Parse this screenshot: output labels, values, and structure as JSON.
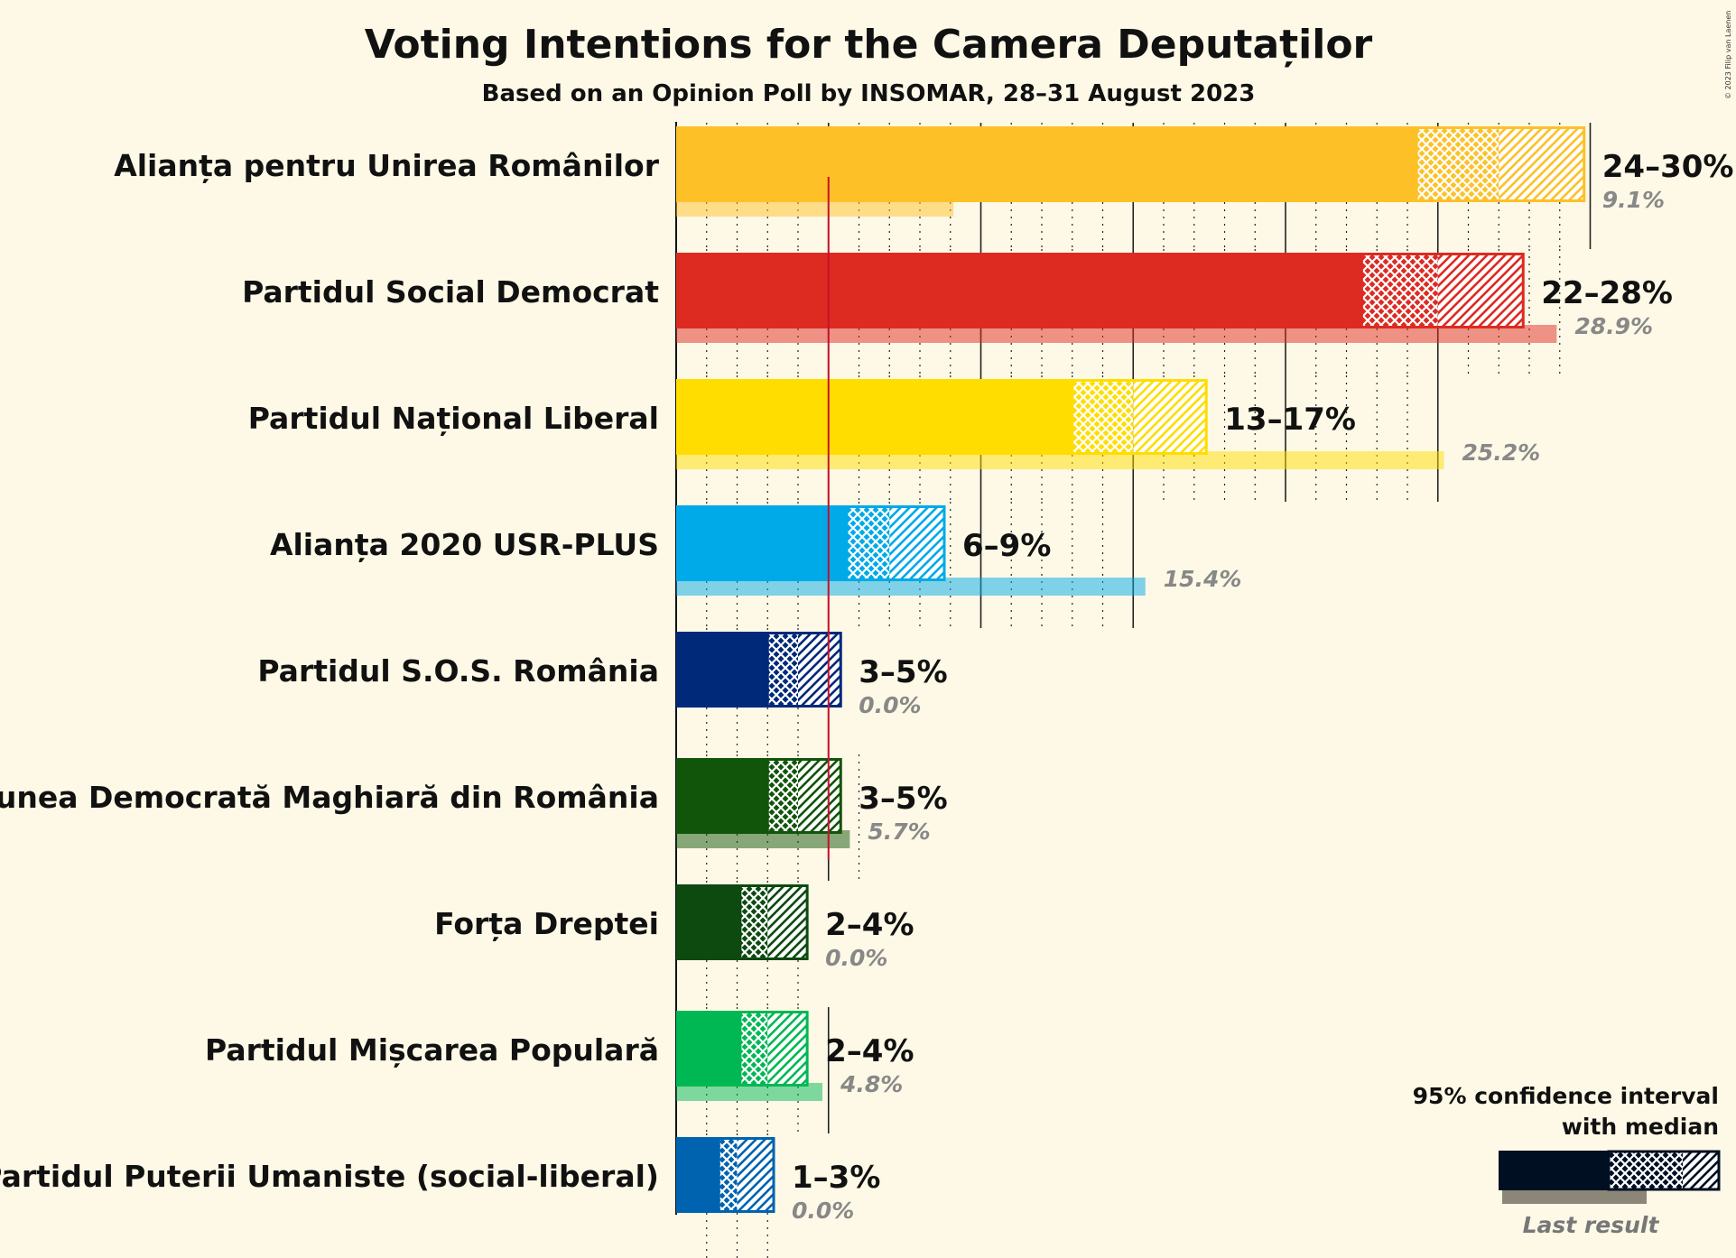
{
  "chart_data": {
    "type": "bar",
    "title": "Voting Intentions for the Camera Deputaților",
    "subtitle": "Based on an Opinion Poll by INSOMAR, 28–31 August 2023",
    "xlim": [
      0,
      31
    ],
    "threshold": 5,
    "parties": [
      {
        "name": "Alianța pentru Unirea Românilor",
        "range_label": "24–30%",
        "last_label": "9.1%",
        "low": 24.3,
        "median": 27,
        "high": 29.8,
        "last": 9.1,
        "color": "#FDC127"
      },
      {
        "name": "Partidul Social Democrat",
        "range_label": "22–28%",
        "last_label": "28.9%",
        "low": 22.5,
        "median": 25,
        "high": 27.8,
        "last": 28.9,
        "color": "#DD2B22"
      },
      {
        "name": "Partidul Național Liberal",
        "range_label": "13–17%",
        "last_label": "25.2%",
        "low": 13,
        "median": 15,
        "high": 17.4,
        "last": 25.2,
        "color": "#FFDD00"
      },
      {
        "name": "Alianța 2020 USR-PLUS",
        "range_label": "6–9%",
        "last_label": "15.4%",
        "low": 5.6,
        "median": 7,
        "high": 8.8,
        "last": 15.4,
        "color": "#00A9E8"
      },
      {
        "name": "Partidul S.O.S. România",
        "range_label": "3–5%",
        "last_label": "0.0%",
        "low": 3,
        "median": 4,
        "high": 5.4,
        "last": 0,
        "color": "#00297A"
      },
      {
        "name": "Uniunea Democrată Maghiară din România",
        "range_label": "3–5%",
        "last_label": "5.7%",
        "low": 3,
        "median": 4,
        "high": 5.4,
        "last": 5.7,
        "color": "#11550A"
      },
      {
        "name": "Forța Dreptei",
        "range_label": "2–4%",
        "last_label": "0.0%",
        "low": 2.1,
        "median": 3,
        "high": 4.3,
        "last": 0,
        "color": "#0C4A0F"
      },
      {
        "name": "Partidul Mișcarea Populară",
        "range_label": "2–4%",
        "last_label": "4.8%",
        "low": 2.1,
        "median": 3,
        "high": 4.3,
        "last": 4.8,
        "color": "#00B853"
      },
      {
        "name": "Partidul Puterii Umaniste (social-liberal)",
        "range_label": "1–3%",
        "last_label": "0.0%",
        "low": 1.4,
        "median": 2,
        "high": 3.2,
        "last": 0,
        "color": "#0063B0"
      }
    ],
    "legend": {
      "line1": "95% confidence interval",
      "line2": "with median",
      "last_result": "Last result",
      "color": "#000F22"
    },
    "copyright": "© 2023 Filip van Laenen"
  }
}
